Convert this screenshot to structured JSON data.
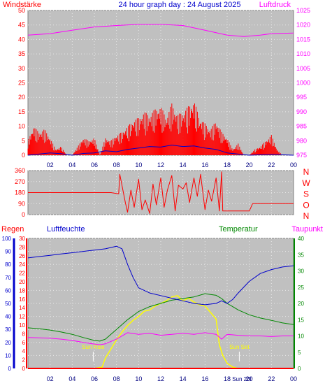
{
  "title": "24 hour graph day : 24 August 2025",
  "colors": {
    "plot_bg": "#c0c0c0",
    "grid": "#e8e8e8",
    "wind": "#ff0000",
    "wind_avg": "#0000cc",
    "wind_green": "#009900",
    "pressure": "#ff00ff",
    "direction": "#ff0000",
    "humidity": "#0000cc",
    "temperature": "#008800",
    "dewpoint": "#ff00ff",
    "solar": "#ffff00",
    "rain": "#ff0000",
    "axis_blue": "#0000cc",
    "axis_red": "#ff0000",
    "axis_green": "#008800",
    "axis_magenta": "#ff00ff"
  },
  "chart_data": [
    {
      "id": "wind-pressure",
      "type": "line",
      "left_label": "Windstärke",
      "right_label": "Luftdruck",
      "ylim_left": [
        0,
        50
      ],
      "yticks_left": [
        "0",
        "5",
        "10",
        "15",
        "20",
        "25",
        "30",
        "35",
        "40",
        "45",
        "50"
      ],
      "ylim_right": [
        975,
        1025
      ],
      "yticks_right": [
        "975",
        "980",
        "985",
        "990",
        "995",
        "1000",
        "1005",
        "1010",
        "1015",
        "1020",
        "1025"
      ],
      "xticks": [
        "02",
        "04",
        "06",
        "08",
        "10",
        "12",
        "14",
        "16",
        "18",
        "20",
        "22",
        "00"
      ],
      "xrange_hours": [
        0,
        24
      ],
      "pressure": {
        "x": [
          0,
          2,
          4,
          6,
          8,
          10,
          12,
          14,
          16,
          18,
          19.5,
          21,
          22,
          24
        ],
        "y": [
          1016.5,
          1017,
          1018.2,
          1019.3,
          1019.8,
          1020.2,
          1020.2,
          1019.8,
          1018.2,
          1016.5,
          1016,
          1016.5,
          1017,
          1017.2
        ]
      },
      "wind_gust_envelope": {
        "x": [
          0,
          0.5,
          1,
          1.5,
          2,
          2.5,
          3,
          3.5,
          4,
          4.5,
          5,
          5.5,
          6,
          6.5,
          7,
          7.5,
          8,
          8.5,
          9,
          9.5,
          10,
          10.5,
          11,
          11.5,
          12,
          12.5,
          13,
          13.5,
          14,
          14.5,
          15,
          15.5,
          16,
          16.5,
          17,
          17.5,
          18,
          18.5,
          19,
          19.5,
          20,
          20.5,
          21,
          21.5,
          22,
          22.5,
          23,
          23.5,
          24
        ],
        "y": [
          5,
          10,
          8,
          9,
          6,
          2,
          3,
          0,
          0,
          3,
          6,
          5,
          6,
          0,
          6,
          5,
          7,
          8,
          10,
          12,
          13,
          15,
          14,
          16,
          17,
          13,
          18,
          14,
          15,
          17,
          19,
          13,
          11,
          9,
          12,
          8,
          6,
          2,
          4,
          0,
          0,
          2,
          3,
          5,
          7,
          2,
          0,
          0,
          0
        ]
      },
      "wind_avg": {
        "x": [
          0,
          2,
          3,
          4,
          5,
          6,
          7,
          8,
          9,
          10,
          11,
          12,
          13,
          14,
          15,
          16,
          17,
          18,
          20,
          22,
          24
        ],
        "y": [
          0,
          0.8,
          0.5,
          0,
          0.6,
          0.8,
          1.5,
          1.2,
          2,
          2.5,
          3,
          2.8,
          3.5,
          3,
          3.2,
          2.5,
          2,
          0.8,
          0,
          0.3,
          0
        ]
      }
    },
    {
      "id": "wind-direction",
      "type": "line",
      "ylim": [
        0,
        360
      ],
      "yticks": [
        "0",
        "90",
        "180",
        "270",
        "360"
      ],
      "compass": [
        "N",
        "W",
        "S",
        "O",
        "N"
      ],
      "xticks": [
        "02",
        "04",
        "06",
        "08",
        "10",
        "12",
        "14",
        "16",
        "18",
        "20",
        "22",
        "00"
      ],
      "xrange_hours": [
        0,
        24
      ],
      "direction": {
        "x": [
          0,
          7.5,
          8.2,
          8.3,
          8.8,
          9,
          9.3,
          9.6,
          10,
          10.3,
          10.6,
          11,
          11.3,
          11.6,
          12,
          12.3,
          12.6,
          13,
          13.3,
          13.6,
          14,
          14.3,
          14.6,
          15,
          15.3,
          15.6,
          16,
          16.3,
          16.6,
          17,
          17.3,
          17.5,
          17.6,
          20,
          20.3,
          24
        ],
        "y": [
          180,
          180,
          170,
          330,
          100,
          20,
          200,
          60,
          290,
          40,
          120,
          10,
          250,
          80,
          300,
          60,
          200,
          320,
          30,
          240,
          210,
          260,
          100,
          300,
          150,
          330,
          40,
          200,
          110,
          300,
          30,
          350,
          30,
          30,
          90,
          90
        ]
      }
    },
    {
      "id": "humidity-temperature",
      "type": "line",
      "left_label": "Regen",
      "left2_label": "Luftfeuchte",
      "right_label": "Temperatur",
      "right2_label": "Taupunkt",
      "ylim_humidity": [
        0,
        100
      ],
      "yticks_humidity": [
        "0",
        "10",
        "20",
        "30",
        "40",
        "50",
        "60",
        "70",
        "80",
        "90",
        "100"
      ],
      "ylim_rain": [
        0,
        30
      ],
      "yticks_rain": [
        "0",
        "2",
        "4",
        "6",
        "8",
        "10",
        "12",
        "14",
        "16",
        "18",
        "20",
        "22",
        "24",
        "26",
        "28",
        "30"
      ],
      "ylim_temperature": [
        0,
        40
      ],
      "yticks_temperature": [
        "0",
        "5",
        "10",
        "15",
        "20",
        "25",
        "30",
        "35",
        "40"
      ],
      "xticks": [
        "02",
        "04",
        "06",
        "08",
        "10",
        "12",
        "14",
        "16",
        "18",
        "20",
        "22",
        "00"
      ],
      "xrange_hours": [
        0,
        24
      ],
      "annotations": [
        "Sun Rise",
        "Sun Set",
        "Sun 20t"
      ],
      "sun_rise_hour": 5.9,
      "sun_set_hour": 19.1,
      "humidity": {
        "x": [
          0,
          1,
          2,
          3,
          4,
          5,
          6,
          7,
          7.5,
          8,
          8.5,
          9,
          9.5,
          10,
          11,
          12,
          13,
          14,
          15,
          16,
          17,
          17.5,
          18,
          18.5,
          19,
          20,
          21,
          22,
          23,
          24
        ],
        "y": [
          85,
          86,
          87,
          88,
          89,
          90,
          91,
          92,
          93,
          94,
          92,
          80,
          70,
          62,
          58,
          56,
          54,
          52,
          50,
          49,
          50,
          52,
          50,
          53,
          58,
          67,
          73,
          76,
          78,
          79
        ]
      },
      "temperature": {
        "x": [
          0,
          1,
          2,
          3,
          4,
          5,
          6,
          6.5,
          7,
          8,
          9,
          10,
          11,
          12,
          13,
          14,
          15,
          16,
          17,
          17.5,
          18,
          18.5,
          19,
          20,
          21,
          22,
          23,
          24
        ],
        "y": [
          12.5,
          12.2,
          11.8,
          11.2,
          10.5,
          9.5,
          8.6,
          8.4,
          9,
          12,
          15,
          17.5,
          19,
          20,
          21,
          21.5,
          22,
          23,
          22.5,
          21.5,
          20,
          19,
          18,
          16.5,
          15.5,
          14.8,
          14,
          13.5
        ]
      },
      "dewpoint": {
        "x": [
          0,
          1,
          2,
          3,
          4,
          5,
          6,
          6.5,
          7,
          8,
          9,
          10,
          11,
          12,
          13,
          14,
          15,
          16,
          17,
          17.5,
          18,
          19,
          20,
          21,
          22,
          23,
          24
        ],
        "y": [
          9.5,
          9.4,
          9.3,
          9,
          8.6,
          8,
          7.5,
          7.3,
          7.6,
          9,
          11,
          10.5,
          10.8,
          10.2,
          10.5,
          10.8,
          10.5,
          11,
          10.5,
          9,
          10.5,
          10.2,
          10,
          10,
          9.8,
          10,
          10
        ]
      },
      "solar": {
        "x": [
          0,
          6,
          6.7,
          7,
          7.5,
          8,
          8.5,
          9,
          9.5,
          10,
          10.5,
          11,
          11.5,
          12,
          12.5,
          13,
          13.5,
          14,
          14.5,
          15,
          15.5,
          16,
          16.5,
          17,
          17.3,
          17.6,
          18,
          18.5,
          19,
          24
        ],
        "y": [
          0,
          0,
          1,
          8,
          15,
          22,
          28,
          33,
          37,
          40,
          44,
          45,
          48,
          50,
          52,
          55,
          56,
          52,
          54,
          51,
          49,
          48,
          43,
          38,
          18,
          10,
          4,
          1,
          0,
          0
        ]
      },
      "rain": {
        "x": [
          0,
          24
        ],
        "y": [
          0,
          0
        ]
      }
    }
  ]
}
